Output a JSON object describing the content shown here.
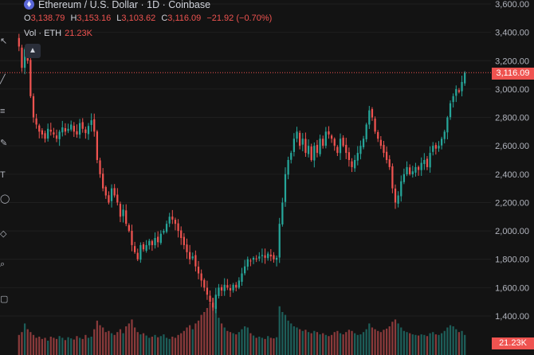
{
  "header": {
    "title": "Ethereum / U.S. Dollar · 1D · Coinbase",
    "ohlc": [
      {
        "key": "O",
        "value": "3,138.79"
      },
      {
        "key": "H",
        "value": "3,153.16"
      },
      {
        "key": "L",
        "value": "3,103.62"
      },
      {
        "key": "C",
        "value": "3,116.09"
      },
      {
        "key": "",
        "value": "−21.92 (−0.70%)"
      }
    ],
    "volume_label": "Vol · ETH",
    "volume_value": "21.23K"
  },
  "last_price_tag": "3,116.09",
  "volume_tag": "21.23K",
  "colors": {
    "background": "#131313",
    "up": "#26a69a",
    "down": "#ef5350",
    "up_volume": "#1d5e59",
    "down_volume": "#8a3a3b",
    "grid": "#1f1f1f",
    "price_line": "#ef5350"
  },
  "toolbar_icons": [
    "cursor-icon",
    "trend-line-icon",
    "fib-icon",
    "brush-icon",
    "text-icon",
    "pattern-icon",
    "ruler-icon",
    "zoom-icon",
    "lock-icon"
  ],
  "chart_data": {
    "type": "candlestick",
    "symbol": "ETH/USD",
    "interval": "1D",
    "y_axis": {
      "ticks": [
        "1,400.00",
        "1,600.00",
        "1,800.00",
        "2,000.00",
        "2,200.00",
        "2,400.00",
        "2,600.00",
        "2,800.00",
        "3,000.00",
        "3,200.00",
        "3,400.00",
        "3,600.00"
      ],
      "tick_values": [
        1400,
        1600,
        1800,
        2000,
        2200,
        2400,
        2600,
        2800,
        3000,
        3200,
        3400,
        3600
      ],
      "range": [
        1300,
        3620
      ]
    },
    "last_close": 3116.09,
    "close_path": [
      3300,
      3150,
      3280,
      3200,
      2950,
      2800,
      2750,
      2700,
      2680,
      2650,
      2720,
      2700,
      2680,
      2650,
      2700,
      2730,
      2700,
      2720,
      2750,
      2700,
      2680,
      2760,
      2720,
      2690,
      2740,
      2780,
      2700,
      2500,
      2400,
      2300,
      2250,
      2200,
      2300,
      2250,
      2200,
      2100,
      2150,
      2050,
      2000,
      1900,
      1850,
      1800,
      1900,
      1870,
      1900,
      1930,
      1900,
      1950,
      1920,
      1980,
      2000,
      2050,
      2100,
      2080,
      2050,
      2000,
      1950,
      1900,
      1850,
      1800,
      1820,
      1750,
      1700,
      1650,
      1600,
      1550,
      1500,
      1460,
      1550,
      1600,
      1580,
      1620,
      1600,
      1580,
      1620,
      1600,
      1650,
      1700,
      1750,
      1800,
      1790,
      1810,
      1800,
      1820,
      1830,
      1810,
      1840,
      1820,
      1800,
      1810,
      2050,
      2200,
      2400,
      2500,
      2550,
      2650,
      2700,
      2600,
      2650,
      2550,
      2600,
      2500,
      2600,
      2550,
      2650,
      2600,
      2700,
      2680,
      2650,
      2600,
      2550,
      2650,
      2600,
      2550,
      2500,
      2450,
      2500,
      2550,
      2600,
      2650,
      2750,
      2850,
      2800,
      2700,
      2650,
      2600,
      2550,
      2500,
      2450,
      2300,
      2200,
      2250,
      2350,
      2400,
      2450,
      2400,
      2420,
      2450,
      2430,
      2480,
      2500,
      2450,
      2550,
      2600,
      2580,
      2600,
      2650,
      2700,
      2800,
      2900,
      2950,
      3000,
      2980,
      3050,
      3116.09
    ],
    "volume_path": [
      0.35,
      0.4,
      0.55,
      0.45,
      0.4,
      0.35,
      0.3,
      0.32,
      0.28,
      0.3,
      0.25,
      0.32,
      0.3,
      0.28,
      0.33,
      0.3,
      0.26,
      0.31,
      0.29,
      0.27,
      0.33,
      0.3,
      0.28,
      0.35,
      0.3,
      0.32,
      0.45,
      0.6,
      0.52,
      0.48,
      0.4,
      0.42,
      0.38,
      0.35,
      0.4,
      0.45,
      0.38,
      0.5,
      0.55,
      0.62,
      0.48,
      0.4,
      0.36,
      0.38,
      0.34,
      0.3,
      0.32,
      0.35,
      0.31,
      0.33,
      0.36,
      0.3,
      0.28,
      0.32,
      0.3,
      0.35,
      0.38,
      0.42,
      0.48,
      0.52,
      0.45,
      0.55,
      0.6,
      0.7,
      0.75,
      0.82,
      0.9,
      1.0,
      0.85,
      0.65,
      0.55,
      0.48,
      0.42,
      0.4,
      0.38,
      0.36,
      0.4,
      0.45,
      0.5,
      0.48,
      0.38,
      0.34,
      0.3,
      0.32,
      0.3,
      0.28,
      0.33,
      0.3,
      0.29,
      0.31,
      0.85,
      0.75,
      0.7,
      0.6,
      0.55,
      0.5,
      0.48,
      0.45,
      0.42,
      0.44,
      0.4,
      0.38,
      0.42,
      0.4,
      0.36,
      0.38,
      0.35,
      0.33,
      0.35,
      0.4,
      0.42,
      0.38,
      0.36,
      0.4,
      0.44,
      0.42,
      0.38,
      0.35,
      0.36,
      0.4,
      0.45,
      0.55,
      0.48,
      0.45,
      0.42,
      0.4,
      0.44,
      0.46,
      0.5,
      0.58,
      0.62,
      0.55,
      0.48,
      0.42,
      0.4,
      0.38,
      0.36,
      0.35,
      0.34,
      0.36,
      0.35,
      0.33,
      0.38,
      0.4,
      0.36,
      0.35,
      0.38,
      0.42,
      0.48,
      0.52,
      0.5,
      0.45,
      0.4,
      0.42,
      0.35
    ]
  }
}
